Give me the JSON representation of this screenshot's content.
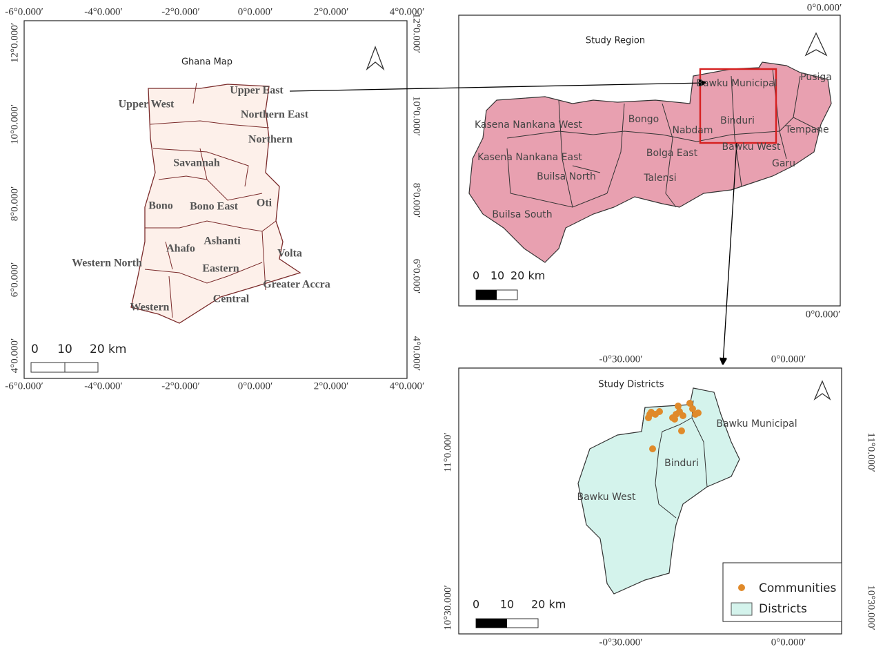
{
  "ghana_map": {
    "title": "Ghana Map",
    "lon_ticks_top": [
      "-6°0.000′",
      "-4°0.000′",
      "-2°0.000′",
      "0°0.000′",
      "2°0.000′",
      "4°0.000′"
    ],
    "lon_ticks_bottom": [
      "-6°0.000′",
      "-4°0.000′",
      "-2°0.000′",
      "0°0.000′",
      "2°0.000′",
      "4°0.000′"
    ],
    "lat_ticks_left": [
      "12°0.000′",
      "10°0.000′",
      "8°0.000′",
      "6°0.000′",
      "4°0.000′"
    ],
    "lat_ticks_right": [
      "12°0.000′",
      "10°0.000′",
      "8°0.000′",
      "6°0.000′",
      "4°0.000′"
    ],
    "regions": [
      "Upper East",
      "Upper West",
      "Northern East",
      "Northern",
      "Savannah",
      "Bono",
      "Bono East",
      "Oti",
      "Ashanti",
      "Ahafo",
      "Volta",
      "Western North",
      "Eastern",
      "Greater Accra",
      "Central",
      "Western"
    ],
    "scale_bar": [
      "0",
      "10",
      "20 km"
    ]
  },
  "study_region": {
    "title": "Study Region",
    "lon_tick_top": "0°0.000′",
    "lon_tick_bottom": "0°0.000′",
    "districts": [
      "Bawku Municipal",
      "Pusiga",
      "Kasena Nankana West",
      "Bongo",
      "Nabdam",
      "Binduri",
      "Tempane",
      "Bawku West",
      "Kasena Nankana East",
      "Bolga East",
      "Garu",
      "Builsa North",
      "Talensi",
      "Builsa South"
    ],
    "scale_bar": [
      "0",
      "10",
      "20 km"
    ]
  },
  "study_districts": {
    "title": "Study Districts",
    "lon_ticks_top": [
      "-0°30.000′",
      "0°0.000′"
    ],
    "lon_ticks_bottom": [
      "-0°30.000′",
      "0°0.000′"
    ],
    "lat_ticks_left": [
      "11°0.000′",
      "10°30.000′"
    ],
    "lat_ticks_right": [
      "11°0.000′",
      "10°30.000′"
    ],
    "districts": [
      "Bawku Municipal",
      "Binduri",
      "Bawku West"
    ],
    "legend": [
      "Communities",
      "Districts"
    ],
    "scale_bar": [
      "0",
      "10",
      "20 km"
    ]
  }
}
